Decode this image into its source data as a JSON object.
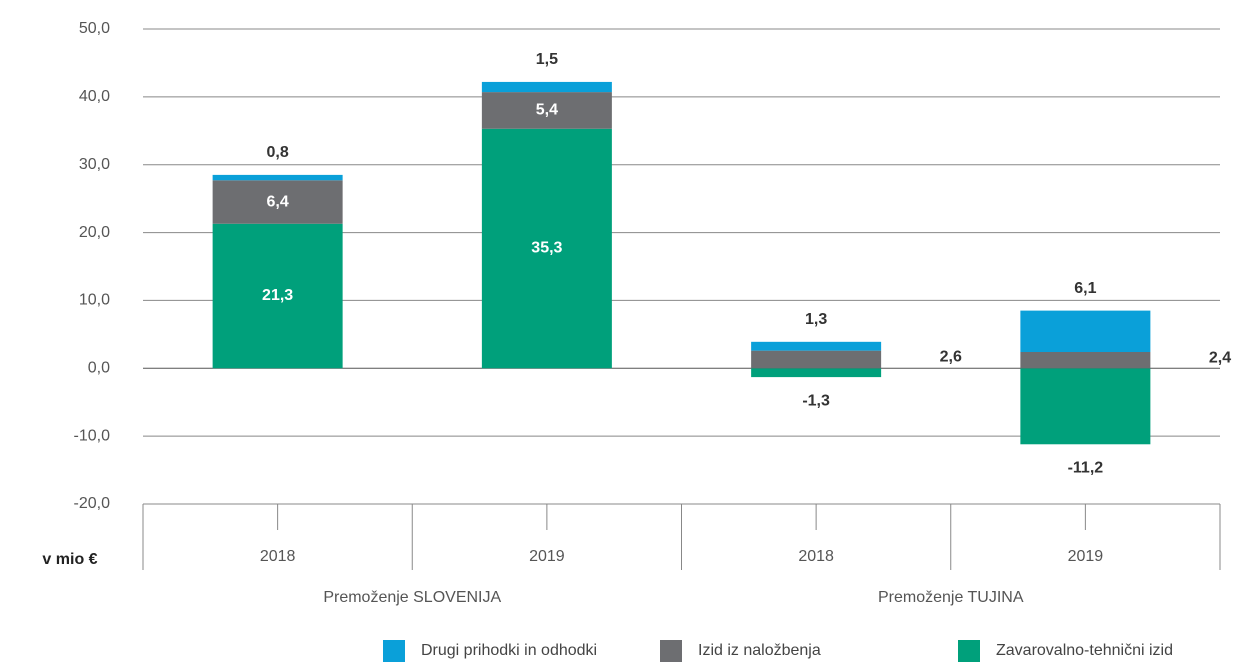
{
  "chart_data": {
    "type": "stacked_bar",
    "categories": [
      "2018",
      "2019",
      "2018",
      "2019"
    ],
    "groups": [
      {
        "label": "Premoženje SLOVENIJA",
        "span": [
          0,
          1
        ]
      },
      {
        "label": "Premoženje TUJINA",
        "span": [
          2,
          3
        ]
      }
    ],
    "ylabel": "v mio €",
    "ylim": [
      -20,
      50
    ],
    "yticks": [
      {
        "value": -20,
        "label": "-20,0"
      },
      {
        "value": -10,
        "label": "-10,0"
      },
      {
        "value": 0,
        "label": "0,0"
      },
      {
        "value": 10,
        "label": "10,0"
      },
      {
        "value": 20,
        "label": "20,0"
      },
      {
        "value": 30,
        "label": "30,0"
      },
      {
        "value": 40,
        "label": "40,0"
      },
      {
        "value": 50,
        "label": "50,0"
      }
    ],
    "grid": true,
    "series": [
      {
        "name": "Drugi prihodki in odhodki",
        "color": "#0aa0d9",
        "values": [
          0.8,
          1.5,
          1.3,
          6.1
        ],
        "value_labels": [
          "0,8",
          "1,5",
          "1,3",
          "6,1"
        ]
      },
      {
        "name": "Izid iz naložbenja",
        "color": "#6d6e71",
        "values": [
          6.4,
          5.4,
          2.6,
          2.4
        ],
        "value_labels": [
          "6,4",
          "5,4",
          "2,6",
          "2,4"
        ]
      },
      {
        "name": "Zavarovalno-tehnični izid",
        "color": "#00a07b",
        "values": [
          21.3,
          35.3,
          -1.3,
          -11.2
        ],
        "value_labels": [
          "21,3",
          "35,3",
          "-1,3",
          "-11,2"
        ]
      }
    ]
  }
}
